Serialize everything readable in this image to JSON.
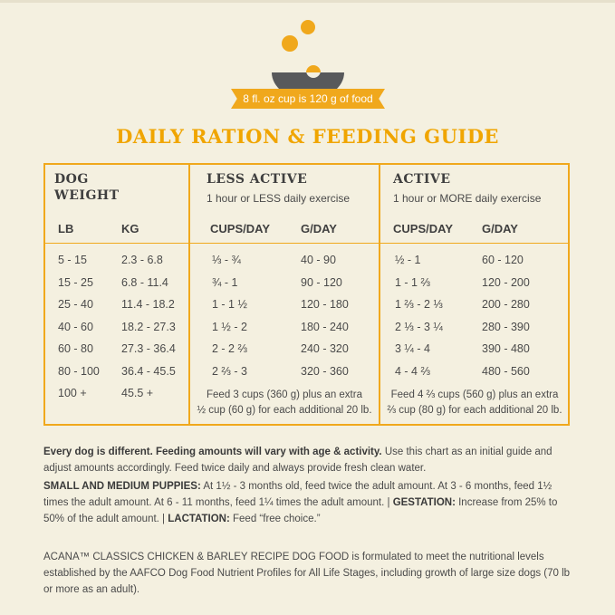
{
  "icon": {
    "name": "bowl-with-kibble-icon",
    "accent": "#f0a81c",
    "bowl": "#58595b"
  },
  "banner": "8 fl. oz cup is 120 g of food",
  "title": "DAILY RATION & FEEDING GUIDE",
  "table": {
    "col1": {
      "title1": "DOG",
      "title2": "WEIGHT",
      "h1": "LB",
      "h2": "KG"
    },
    "col2": {
      "title": "LESS ACTIVE",
      "subtitle": "1 hour or LESS daily exercise",
      "h1": "CUPS/DAY",
      "h2": "G/DAY",
      "note1": "Feed 3 cups (360 g) plus an extra",
      "note2": "½ cup (60 g) for each additional 20 lb."
    },
    "col3": {
      "title": "ACTIVE",
      "subtitle": "1 hour or MORE daily exercise",
      "h1": "CUPS/DAY",
      "h2": "G/DAY",
      "note1": "Feed 4 ⅔ cups (560 g) plus an extra",
      "note2": "⅔ cup (80 g) for each additional 20 lb."
    },
    "rows": [
      [
        "5 - 15",
        "2.3 - 6.8",
        "⅓ - ¾",
        "40 - 90",
        "½ - 1",
        "60 - 120"
      ],
      [
        "15 - 25",
        "6.8 - 11.4",
        "¾ - 1",
        "90 - 120",
        "1 - 1 ⅔",
        "120 - 200"
      ],
      [
        "25 - 40",
        "11.4 - 18.2",
        "1 - 1 ½",
        "120 - 180",
        "1 ⅔ - 2 ⅓",
        "200 - 280"
      ],
      [
        "40 - 60",
        "18.2 - 27.3",
        "1 ½ - 2",
        "180 - 240",
        "2 ⅓ - 3 ¼",
        "280 - 390"
      ],
      [
        "60 - 80",
        "27.3 - 36.4",
        "2 - 2 ⅔",
        "240 - 320",
        "3 ¼ - 4",
        "390 - 480"
      ],
      [
        "80 - 100",
        "36.4 - 45.5",
        "2 ⅔ - 3",
        "320 - 360",
        "4 - 4 ⅔",
        "480 - 560"
      ],
      [
        "100 +",
        "45.5 +",
        "",
        "",
        "",
        ""
      ]
    ]
  },
  "text": {
    "p1_bold": "Every dog is different. Feeding amounts will vary with age & activity.",
    "p1": " Use this chart as an initial guide and adjust amounts accordingly. Feed twice daily and always provide fresh clean water.",
    "p2_bold1": "SMALL AND MEDIUM PUPPIES:",
    "p2a": " At 1½ - 3 months old, feed twice the adult amount. At 3 - 6 months, feed 1½ times the adult amount. At 6 - 11 months, feed 1¼ times the adult amount. | ",
    "p2_bold2": "GESTATION:",
    "p2b": " Increase from 25% to 50% of the adult amount. | ",
    "p2_bold3": "LACTATION:",
    "p2c": " Feed “free choice.”",
    "p3": "ACANA™ CLASSICS CHICKEN & BARLEY RECIPE DOG FOOD is formulated to meet the nutritional levels established by the AAFCO Dog Food Nutrient Profiles for All Life Stages, including growth of large size dogs (70 lb or more as an adult)."
  }
}
